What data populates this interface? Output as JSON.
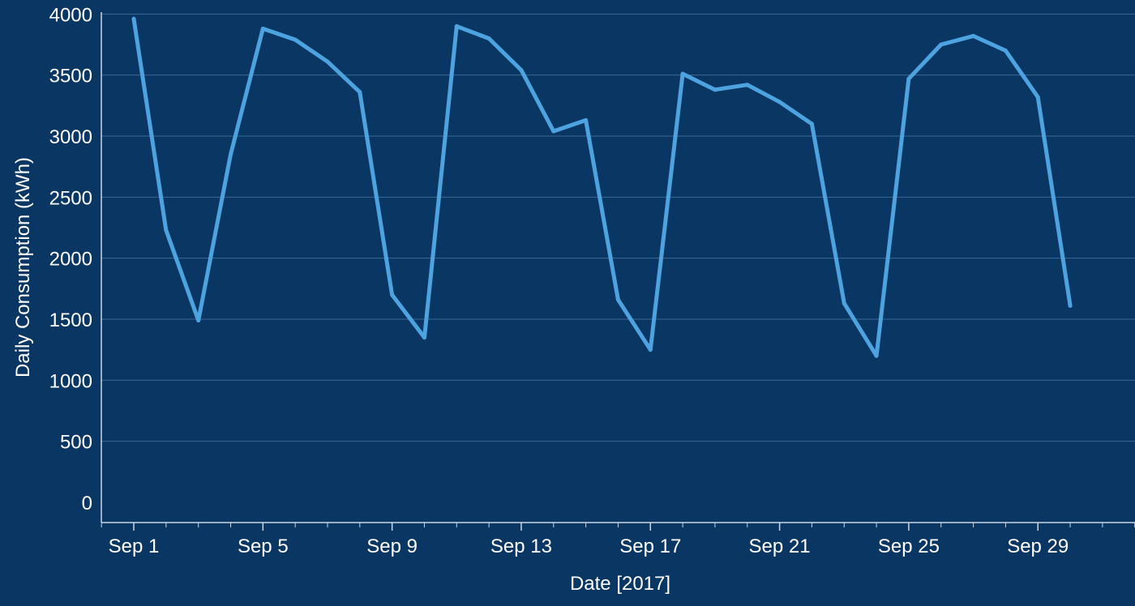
{
  "colors": {
    "background": "#0a3663",
    "line": "#4da3e0",
    "grid": "#3b6a94",
    "axis": "#c8d6e6",
    "text": "#ffffff"
  },
  "chart_data": {
    "type": "line",
    "title": "",
    "xlabel": "Date  [2017]",
    "ylabel": "Daily Consumption (kWh)",
    "ylim": [
      0,
      4200
    ],
    "xlim": [
      "2017-08-31",
      "2017-10-02"
    ],
    "grid": true,
    "legend": "none",
    "y_ticks": [
      0,
      500,
      1000,
      1500,
      2000,
      2500,
      3000,
      3500,
      4000
    ],
    "y_tick_labels": [
      "0",
      "500",
      "1000",
      "1500",
      "2000",
      "2500",
      "3000",
      "3500",
      "4000"
    ],
    "x_ticks": [
      "2017-09-01",
      "2017-09-05",
      "2017-09-09",
      "2017-09-13",
      "2017-09-17",
      "2017-09-21",
      "2017-09-25",
      "2017-09-29"
    ],
    "x_tick_labels": [
      "Sep 1",
      "Sep 5",
      "Sep 9",
      "Sep 13",
      "Sep 17",
      "Sep 21",
      "Sep 25",
      "Sep 29"
    ],
    "series": [
      {
        "x": [
          "2017-09-01",
          "2017-09-02",
          "2017-09-03",
          "2017-09-04",
          "2017-09-05",
          "2017-09-06",
          "2017-09-07",
          "2017-09-08",
          "2017-09-09",
          "2017-09-10",
          "2017-09-11",
          "2017-09-12",
          "2017-09-13",
          "2017-09-14",
          "2017-09-15",
          "2017-09-16",
          "2017-09-17",
          "2017-09-18",
          "2017-09-19",
          "2017-09-20",
          "2017-09-21",
          "2017-09-22",
          "2017-09-23",
          "2017-09-24",
          "2017-09-25",
          "2017-09-26",
          "2017-09-27",
          "2017-09-28",
          "2017-09-29",
          "2017-09-30"
        ],
        "values": [
          3960,
          2230,
          1490,
          2850,
          3880,
          3790,
          3610,
          3360,
          1700,
          1350,
          3900,
          3800,
          3540,
          3040,
          3130,
          1660,
          1250,
          3510,
          3380,
          3420,
          3280,
          3100,
          1630,
          1200,
          3470,
          3750,
          3820,
          3700,
          3320,
          1610
        ]
      }
    ]
  }
}
